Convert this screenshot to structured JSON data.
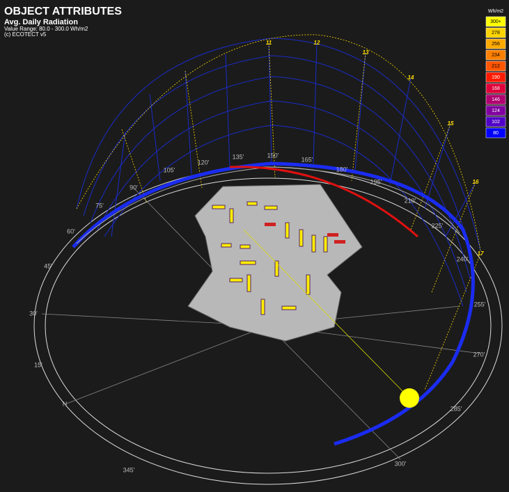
{
  "header": {
    "title": "OBJECT ATTRIBUTES",
    "subtitle": "Avg. Daily Radiation",
    "range": "Value Range: 80.0 - 300.0 Wh/m2",
    "credit": "(c) ECOTECT v5"
  },
  "legend": {
    "title": "Wh/m2",
    "items": [
      {
        "label": "300+",
        "color": "#ffff00"
      },
      {
        "label": "278",
        "color": "#ffd400"
      },
      {
        "label": "256",
        "color": "#ffaa00"
      },
      {
        "label": "234",
        "color": "#ff8000"
      },
      {
        "label": "212",
        "color": "#ff5500"
      },
      {
        "label": "190",
        "color": "#ff1a00"
      },
      {
        "label": "168",
        "color": "#e0003a"
      },
      {
        "label": "146",
        "color": "#b00070"
      },
      {
        "label": "124",
        "color": "#8000a0"
      },
      {
        "label": "102",
        "color": "#5000c8"
      },
      {
        "label": "80",
        "color": "#0000ff"
      }
    ]
  },
  "azimuth_labels": [
    "60'",
    "75'",
    "90'",
    "105'",
    "120'",
    "135'",
    "150'",
    "165'",
    "180'",
    "195'",
    "210'",
    "225'",
    "240'",
    "255'",
    "270'",
    "285'",
    "300'",
    "345'",
    "N",
    "15'",
    "30'",
    "45'"
  ],
  "hour_labels": [
    "11",
    "12",
    "13",
    "14",
    "15",
    "16",
    "17"
  ]
}
